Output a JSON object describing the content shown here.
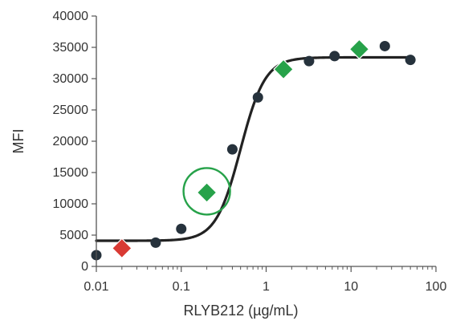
{
  "chart_data": {
    "type": "scatter",
    "title": "",
    "xlabel": "RLYB212 (µg/mL)",
    "ylabel": "MFI",
    "x_scale": "log",
    "xlim": [
      0.01,
      100
    ],
    "ylim": [
      0,
      40000
    ],
    "x_ticks": [
      0.01,
      0.1,
      1,
      10,
      100
    ],
    "x_tick_labels": [
      "0.01",
      "0.1",
      "1",
      "10",
      "100"
    ],
    "y_ticks": [
      0,
      5000,
      10000,
      15000,
      20000,
      25000,
      30000,
      35000,
      40000
    ],
    "y_tick_labels": [
      "0",
      "5000",
      "10000",
      "15000",
      "20000",
      "25000",
      "30000",
      "35000",
      "40000"
    ],
    "grid": false,
    "legend": "none",
    "series": [
      {
        "marker": "circle",
        "color": "#26323c",
        "points": [
          {
            "x": 0.01,
            "y": 1800
          },
          {
            "x": 0.05,
            "y": 3800
          },
          {
            "x": 0.1,
            "y": 6000
          },
          {
            "x": 0.4,
            "y": 18700
          },
          {
            "x": 0.8,
            "y": 27000
          },
          {
            "x": 3.2,
            "y": 32800
          },
          {
            "x": 6.4,
            "y": 33600
          },
          {
            "x": 25,
            "y": 35200
          },
          {
            "x": 50,
            "y": 33000
          }
        ]
      },
      {
        "marker": "diamond",
        "color": "#d93a34",
        "points": [
          {
            "x": 0.02,
            "y": 2900
          }
        ]
      },
      {
        "marker": "diamond",
        "color": "#27a24a",
        "points": [
          {
            "x": 0.2,
            "y": 11800
          },
          {
            "x": 1.6,
            "y": 31500
          },
          {
            "x": 12.5,
            "y": 34700
          }
        ]
      }
    ],
    "fit_curve": {
      "type": "4-parameter logistic",
      "color": "#222222",
      "bottom": 4100,
      "top": 33400,
      "ec50": 0.5,
      "hill": 3.0
    },
    "highlight": {
      "shape": "circle",
      "color": "#27a24a",
      "x": 0.2,
      "y": 12000
    }
  }
}
